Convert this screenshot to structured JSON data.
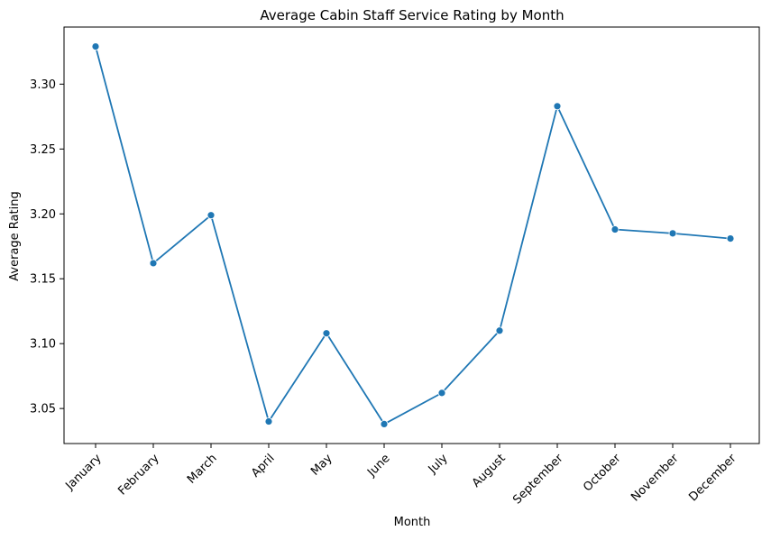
{
  "chart_data": {
    "type": "line",
    "title": "Average Cabin Staff Service Rating by Month",
    "xlabel": "Month",
    "ylabel": "Average Rating",
    "categories": [
      "January",
      "February",
      "March",
      "April",
      "May",
      "June",
      "July",
      "August",
      "September",
      "October",
      "November",
      "December"
    ],
    "series": [
      {
        "values": [
          3.329,
          3.162,
          3.199,
          3.04,
          3.108,
          3.038,
          3.062,
          3.11,
          3.283,
          3.188,
          3.185,
          3.181
        ]
      }
    ],
    "yticks": [
      3.05,
      3.1,
      3.15,
      3.2,
      3.25,
      3.3
    ],
    "ytick_labels": [
      "3.05",
      "3.10",
      "3.15",
      "3.20",
      "3.25",
      "3.30"
    ],
    "ylim": [
      3.023,
      3.344
    ],
    "grid": false,
    "legend": "none",
    "x_tick_rotation": 45,
    "line_color": "#1f77b4",
    "marker": "circle"
  }
}
